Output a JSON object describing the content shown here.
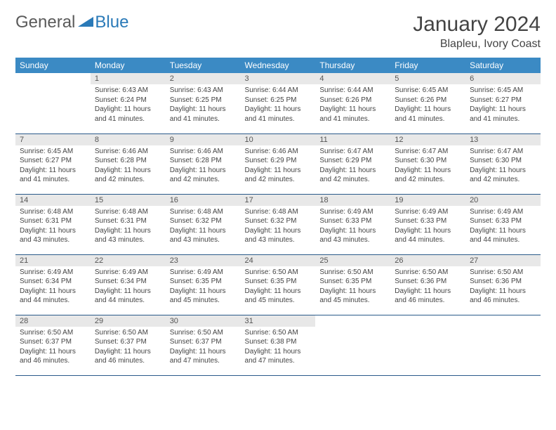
{
  "logo": {
    "general": "General",
    "blue": "Blue"
  },
  "title": "January 2024",
  "location": "Blapleu, Ivory Coast",
  "weekdays": [
    "Sunday",
    "Monday",
    "Tuesday",
    "Wednesday",
    "Thursday",
    "Friday",
    "Saturday"
  ],
  "colors": {
    "header_bg": "#3b8ac4",
    "row_border": "#2a5a8a",
    "daynum_bg": "#e8e8e8",
    "logo_blue": "#2a7ab8",
    "logo_gray": "#5a5a5a"
  },
  "layout": {
    "start_offset": 1,
    "rows": 5,
    "cols": 7
  },
  "days": [
    {
      "n": "1",
      "sunrise": "Sunrise: 6:43 AM",
      "sunset": "Sunset: 6:24 PM",
      "day1": "Daylight: 11 hours",
      "day2": "and 41 minutes."
    },
    {
      "n": "2",
      "sunrise": "Sunrise: 6:43 AM",
      "sunset": "Sunset: 6:25 PM",
      "day1": "Daylight: 11 hours",
      "day2": "and 41 minutes."
    },
    {
      "n": "3",
      "sunrise": "Sunrise: 6:44 AM",
      "sunset": "Sunset: 6:25 PM",
      "day1": "Daylight: 11 hours",
      "day2": "and 41 minutes."
    },
    {
      "n": "4",
      "sunrise": "Sunrise: 6:44 AM",
      "sunset": "Sunset: 6:26 PM",
      "day1": "Daylight: 11 hours",
      "day2": "and 41 minutes."
    },
    {
      "n": "5",
      "sunrise": "Sunrise: 6:45 AM",
      "sunset": "Sunset: 6:26 PM",
      "day1": "Daylight: 11 hours",
      "day2": "and 41 minutes."
    },
    {
      "n": "6",
      "sunrise": "Sunrise: 6:45 AM",
      "sunset": "Sunset: 6:27 PM",
      "day1": "Daylight: 11 hours",
      "day2": "and 41 minutes."
    },
    {
      "n": "7",
      "sunrise": "Sunrise: 6:45 AM",
      "sunset": "Sunset: 6:27 PM",
      "day1": "Daylight: 11 hours",
      "day2": "and 41 minutes."
    },
    {
      "n": "8",
      "sunrise": "Sunrise: 6:46 AM",
      "sunset": "Sunset: 6:28 PM",
      "day1": "Daylight: 11 hours",
      "day2": "and 42 minutes."
    },
    {
      "n": "9",
      "sunrise": "Sunrise: 6:46 AM",
      "sunset": "Sunset: 6:28 PM",
      "day1": "Daylight: 11 hours",
      "day2": "and 42 minutes."
    },
    {
      "n": "10",
      "sunrise": "Sunrise: 6:46 AM",
      "sunset": "Sunset: 6:29 PM",
      "day1": "Daylight: 11 hours",
      "day2": "and 42 minutes."
    },
    {
      "n": "11",
      "sunrise": "Sunrise: 6:47 AM",
      "sunset": "Sunset: 6:29 PM",
      "day1": "Daylight: 11 hours",
      "day2": "and 42 minutes."
    },
    {
      "n": "12",
      "sunrise": "Sunrise: 6:47 AM",
      "sunset": "Sunset: 6:30 PM",
      "day1": "Daylight: 11 hours",
      "day2": "and 42 minutes."
    },
    {
      "n": "13",
      "sunrise": "Sunrise: 6:47 AM",
      "sunset": "Sunset: 6:30 PM",
      "day1": "Daylight: 11 hours",
      "day2": "and 42 minutes."
    },
    {
      "n": "14",
      "sunrise": "Sunrise: 6:48 AM",
      "sunset": "Sunset: 6:31 PM",
      "day1": "Daylight: 11 hours",
      "day2": "and 43 minutes."
    },
    {
      "n": "15",
      "sunrise": "Sunrise: 6:48 AM",
      "sunset": "Sunset: 6:31 PM",
      "day1": "Daylight: 11 hours",
      "day2": "and 43 minutes."
    },
    {
      "n": "16",
      "sunrise": "Sunrise: 6:48 AM",
      "sunset": "Sunset: 6:32 PM",
      "day1": "Daylight: 11 hours",
      "day2": "and 43 minutes."
    },
    {
      "n": "17",
      "sunrise": "Sunrise: 6:48 AM",
      "sunset": "Sunset: 6:32 PM",
      "day1": "Daylight: 11 hours",
      "day2": "and 43 minutes."
    },
    {
      "n": "18",
      "sunrise": "Sunrise: 6:49 AM",
      "sunset": "Sunset: 6:33 PM",
      "day1": "Daylight: 11 hours",
      "day2": "and 43 minutes."
    },
    {
      "n": "19",
      "sunrise": "Sunrise: 6:49 AM",
      "sunset": "Sunset: 6:33 PM",
      "day1": "Daylight: 11 hours",
      "day2": "and 44 minutes."
    },
    {
      "n": "20",
      "sunrise": "Sunrise: 6:49 AM",
      "sunset": "Sunset: 6:33 PM",
      "day1": "Daylight: 11 hours",
      "day2": "and 44 minutes."
    },
    {
      "n": "21",
      "sunrise": "Sunrise: 6:49 AM",
      "sunset": "Sunset: 6:34 PM",
      "day1": "Daylight: 11 hours",
      "day2": "and 44 minutes."
    },
    {
      "n": "22",
      "sunrise": "Sunrise: 6:49 AM",
      "sunset": "Sunset: 6:34 PM",
      "day1": "Daylight: 11 hours",
      "day2": "and 44 minutes."
    },
    {
      "n": "23",
      "sunrise": "Sunrise: 6:49 AM",
      "sunset": "Sunset: 6:35 PM",
      "day1": "Daylight: 11 hours",
      "day2": "and 45 minutes."
    },
    {
      "n": "24",
      "sunrise": "Sunrise: 6:50 AM",
      "sunset": "Sunset: 6:35 PM",
      "day1": "Daylight: 11 hours",
      "day2": "and 45 minutes."
    },
    {
      "n": "25",
      "sunrise": "Sunrise: 6:50 AM",
      "sunset": "Sunset: 6:35 PM",
      "day1": "Daylight: 11 hours",
      "day2": "and 45 minutes."
    },
    {
      "n": "26",
      "sunrise": "Sunrise: 6:50 AM",
      "sunset": "Sunset: 6:36 PM",
      "day1": "Daylight: 11 hours",
      "day2": "and 46 minutes."
    },
    {
      "n": "27",
      "sunrise": "Sunrise: 6:50 AM",
      "sunset": "Sunset: 6:36 PM",
      "day1": "Daylight: 11 hours",
      "day2": "and 46 minutes."
    },
    {
      "n": "28",
      "sunrise": "Sunrise: 6:50 AM",
      "sunset": "Sunset: 6:37 PM",
      "day1": "Daylight: 11 hours",
      "day2": "and 46 minutes."
    },
    {
      "n": "29",
      "sunrise": "Sunrise: 6:50 AM",
      "sunset": "Sunset: 6:37 PM",
      "day1": "Daylight: 11 hours",
      "day2": "and 46 minutes."
    },
    {
      "n": "30",
      "sunrise": "Sunrise: 6:50 AM",
      "sunset": "Sunset: 6:37 PM",
      "day1": "Daylight: 11 hours",
      "day2": "and 47 minutes."
    },
    {
      "n": "31",
      "sunrise": "Sunrise: 6:50 AM",
      "sunset": "Sunset: 6:38 PM",
      "day1": "Daylight: 11 hours",
      "day2": "and 47 minutes."
    }
  ]
}
